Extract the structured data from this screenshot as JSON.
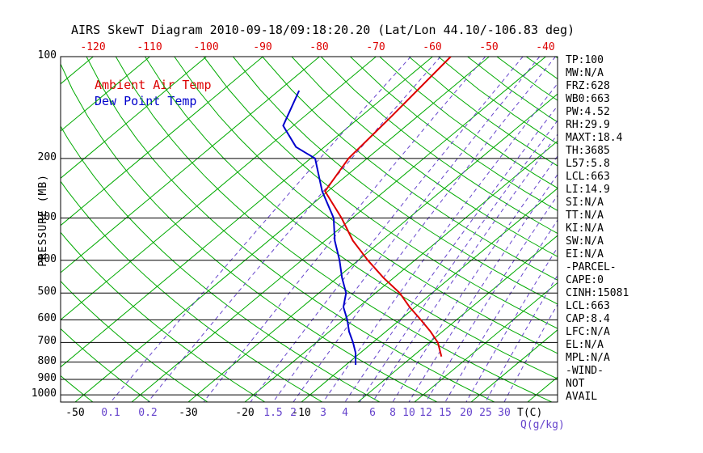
{
  "title": "AIRS SkewT Diagram 2010-09-18/09:18:20.20 (Lat/Lon 44.10/-106.83 deg)",
  "colors": {
    "temperature": "#dd0000",
    "dewpoint": "#0000cc",
    "isotherm": "#00aa00",
    "adiabat": "#00aa00",
    "mixing_ratio": "#6644cc",
    "isobar": "#000000",
    "text": "#000000"
  },
  "legend": {
    "temp_label": "Ambient Air Temp",
    "dew_label": "Dew Point Temp"
  },
  "y_axis": {
    "label": "PRESSURE (MB)",
    "ticks": [
      100,
      200,
      300,
      400,
      500,
      600,
      700,
      800,
      900,
      1000
    ]
  },
  "top_axis": {
    "ticks": [
      -120,
      -110,
      -100,
      -90,
      -80,
      -70,
      -60,
      -50,
      -40
    ]
  },
  "bottom_axis": {
    "temp_ticks": [
      -50,
      -30,
      -20,
      -10
    ],
    "temp_unit": "T(C)",
    "mixing_ticks": [
      0.1,
      0.2,
      1.5,
      2,
      3,
      4,
      6,
      8,
      10,
      12,
      15,
      20,
      25,
      30
    ],
    "mixing_unit": "Q(g/kg)"
  },
  "stats_panel": [
    "TP:100",
    "MW:N/A",
    "FRZ:628",
    "WB0:663",
    "PW:4.52",
    "RH:29.9",
    "MAXT:18.4",
    "TH:3685",
    "L57:5.8",
    "LCL:663",
    "LI:14.9",
    "SI:N/A",
    "TT:N/A",
    "KI:N/A",
    "SW:N/A",
    "EI:N/A",
    "-PARCEL-",
    "CAPE:0",
    "CINH:15081",
    "LCL:663",
    "CAP:8.4",
    "LFC:N/A",
    "EL:N/A",
    "MPL:N/A",
    "-WIND-",
    "NOT",
    "AVAIL"
  ],
  "chart_data": {
    "type": "line",
    "title": "AIRS SkewT Diagram 2010-09-18/09:18:20.20 (Lat/Lon 44.10/-106.83 deg)",
    "xlabel": "T(C)",
    "ylabel": "PRESSURE (MB)",
    "y_scale": "log-inverted",
    "pressure_range": [
      100,
      1050
    ],
    "skewed_temperature_axis": true,
    "grid": {
      "isobars_mb": [
        100,
        200,
        300,
        400,
        500,
        600,
        700,
        800,
        900,
        1000
      ],
      "isotherms_c": {
        "min": -130,
        "max": 40,
        "step": 10
      },
      "dry_adiabats_c": {
        "min": -60,
        "max": 190,
        "step": 10
      },
      "mixing_ratio_gkg": [
        0.1,
        0.2,
        0.5,
        1,
        1.5,
        2,
        3,
        4,
        5,
        6,
        8,
        10,
        12,
        15,
        20,
        25,
        30
      ]
    },
    "legend_position": "top-left-inside",
    "series": [
      {
        "name": "Ambient Air Temp",
        "color": "#dd0000",
        "points": [
          {
            "p": 100,
            "t": -56.8
          },
          {
            "p": 150,
            "t": -54.6
          },
          {
            "p": 200,
            "t": -53.3
          },
          {
            "p": 250,
            "t": -50.5
          },
          {
            "p": 300,
            "t": -41.9
          },
          {
            "p": 350,
            "t": -35.1
          },
          {
            "p": 400,
            "t": -28.3
          },
          {
            "p": 450,
            "t": -21.9
          },
          {
            "p": 500,
            "t": -15.7
          },
          {
            "p": 550,
            "t": -11.0
          },
          {
            "p": 600,
            "t": -6.3
          },
          {
            "p": 650,
            "t": -2.1
          },
          {
            "p": 700,
            "t": 1.5
          },
          {
            "p": 770,
            "t": 5.1
          }
        ]
      },
      {
        "name": "Dew Point Temp",
        "color": "#0000cc",
        "points": [
          {
            "p": 126,
            "t": -76.4
          },
          {
            "p": 160,
            "t": -71.8
          },
          {
            "p": 185,
            "t": -65.0
          },
          {
            "p": 200,
            "t": -59.2
          },
          {
            "p": 250,
            "t": -51.0
          },
          {
            "p": 300,
            "t": -43.3
          },
          {
            "p": 350,
            "t": -38.3
          },
          {
            "p": 400,
            "t": -33.3
          },
          {
            "p": 450,
            "t": -29.2
          },
          {
            "p": 500,
            "t": -25.2
          },
          {
            "p": 550,
            "t": -22.7
          },
          {
            "p": 600,
            "t": -19.3
          },
          {
            "p": 650,
            "t": -16.5
          },
          {
            "p": 700,
            "t": -13.5
          },
          {
            "p": 750,
            "t": -10.9
          },
          {
            "p": 815,
            "t": -8.3
          }
        ]
      }
    ]
  }
}
